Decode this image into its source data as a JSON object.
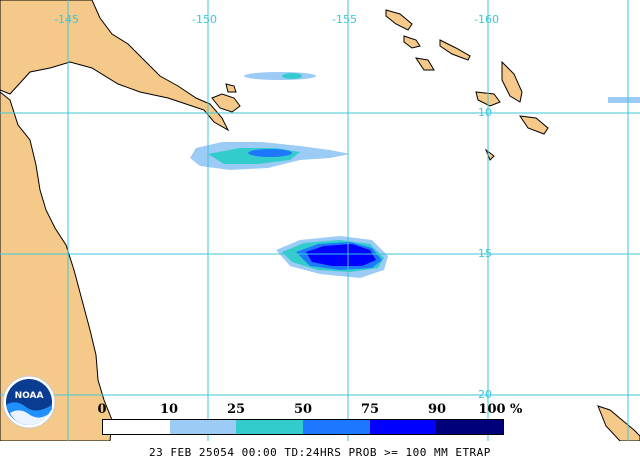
{
  "map": {
    "longitude_labels": [
      "-145",
      "-150",
      "-155",
      "-160"
    ],
    "latitude_labels": [
      "-10",
      "-15",
      "-20"
    ],
    "colors": {
      "background": "#ffffff",
      "land": "#f5c98a",
      "coastline": "#000000",
      "grid": "#3ec6d8"
    }
  },
  "precip_areas": [
    {
      "name": "precip-area-north-strip",
      "probability_class": "10-25"
    },
    {
      "name": "precip-area-central",
      "probability_class": "50-75"
    },
    {
      "name": "precip-area-south-core",
      "probability_class": "75-90"
    }
  ],
  "legend": {
    "tick_labels": [
      "0",
      "10",
      "25",
      "50",
      "75",
      "90",
      "100"
    ],
    "unit": "%",
    "colors": [
      "#ffffff",
      "#9ccbf5",
      "#33cccc",
      "#1e78ff",
      "#0000ff",
      "#00007a"
    ]
  },
  "logo": {
    "text": "NOAA"
  },
  "footer": {
    "text": "23 FEB 25054 00:00 TD:24HRS PROB >= 100 MM ETRAP"
  }
}
